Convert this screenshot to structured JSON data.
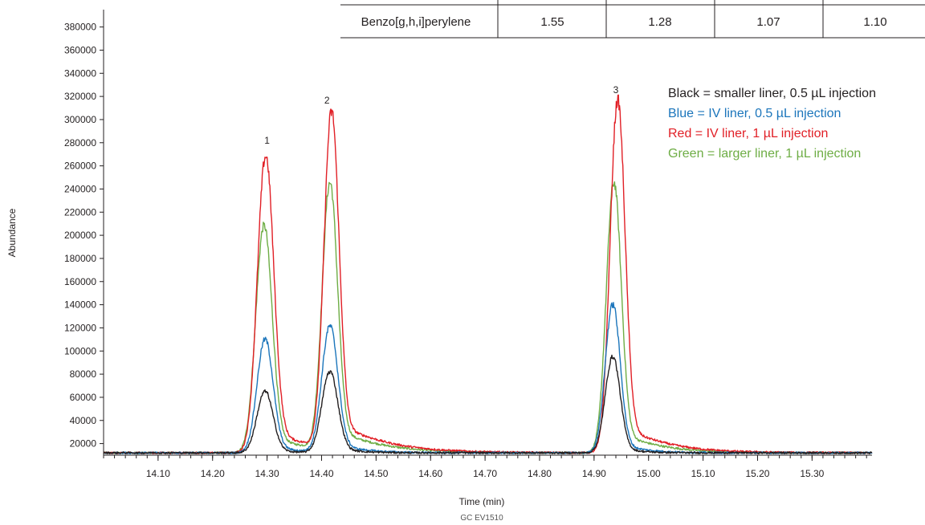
{
  "chart_data": {
    "type": "line",
    "xlabel": "Time (min)",
    "ylabel": "Abundance",
    "footnote": "GC EV1510",
    "xlim": [
      14.0,
      15.41
    ],
    "ylim": [
      10000,
      395000
    ],
    "x_ticks": [
      14.1,
      14.2,
      14.3,
      14.4,
      14.5,
      14.6,
      14.7,
      14.8,
      14.9,
      15.0,
      15.1,
      15.2,
      15.3
    ],
    "x_tick_labels": [
      "14.10",
      "14.20",
      "14.30",
      "14.40",
      "14.50",
      "14.60",
      "14.70",
      "14.80",
      "14.90",
      "15.00",
      "15.10",
      "15.20",
      "15.30"
    ],
    "y_ticks": [
      20000,
      40000,
      60000,
      80000,
      100000,
      120000,
      140000,
      160000,
      180000,
      200000,
      220000,
      240000,
      260000,
      280000,
      300000,
      320000,
      340000,
      360000,
      380000
    ],
    "y_tick_labels": [
      "20000",
      "40000",
      "60000",
      "80000",
      "100000",
      "120000",
      "140000",
      "160000",
      "180000",
      "200000",
      "220000",
      "240000",
      "260000",
      "280000",
      "300000",
      "320000",
      "340000",
      "360000",
      "380000"
    ],
    "grid": false,
    "legend_position": "top-right",
    "peak_labels": [
      {
        "label": "1",
        "x": 14.3,
        "y": 279000
      },
      {
        "label": "2",
        "x": 14.41,
        "y": 314000
      },
      {
        "label": "3",
        "x": 14.94,
        "y": 323000
      }
    ],
    "baseline": 12000,
    "series": [
      {
        "name": "Black = smaller liner, 0.5 µL injection",
        "color": "#231f20",
        "peaks": [
          {
            "x": 14.296,
            "height": 65000,
            "width": 0.0145,
            "tail": 0.03
          },
          {
            "x": 14.415,
            "height": 82000,
            "width": 0.0145,
            "tail": 0.035
          },
          {
            "x": 14.934,
            "height": 95000,
            "width": 0.0135,
            "tail": 0.03
          }
        ]
      },
      {
        "name": "Blue = IV liner, 0.5 µL injection",
        "color": "#1b75bb",
        "peaks": [
          {
            "x": 14.296,
            "height": 110000,
            "width": 0.0145,
            "tail": 0.04
          },
          {
            "x": 14.415,
            "height": 121000,
            "width": 0.0145,
            "tail": 0.045
          },
          {
            "x": 14.934,
            "height": 140000,
            "width": 0.0135,
            "tail": 0.04
          }
        ]
      },
      {
        "name": "Red = IV liner, 1 µL injection",
        "color": "#e11f26",
        "peaks": [
          {
            "x": 14.297,
            "height": 268000,
            "width": 0.0148,
            "tail": 0.07
          },
          {
            "x": 14.418,
            "height": 302000,
            "width": 0.0135,
            "tail": 0.08
          },
          {
            "x": 14.943,
            "height": 316000,
            "width": 0.0135,
            "tail": 0.07
          }
        ]
      },
      {
        "name": "Green = larger liner, 1 µL injection",
        "color": "#6ead45",
        "peaks": [
          {
            "x": 14.294,
            "height": 208000,
            "width": 0.0148,
            "tail": 0.065
          },
          {
            "x": 14.415,
            "height": 242000,
            "width": 0.0138,
            "tail": 0.075
          },
          {
            "x": 14.936,
            "height": 245000,
            "width": 0.0135,
            "tail": 0.065
          }
        ]
      }
    ]
  },
  "table": {
    "rows": [
      {
        "compound": "Benzo[g,h,i]perylene",
        "values": [
          "1.55",
          "1.28",
          "1.07",
          "1.10"
        ]
      }
    ]
  }
}
